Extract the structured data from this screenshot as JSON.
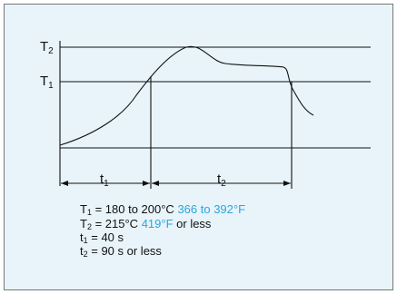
{
  "diagram": {
    "labels": {
      "t2_level": "T",
      "t2_level_sub": "2",
      "t1_level": "T",
      "t1_level_sub": "1",
      "t1_span": "t",
      "t1_span_sub": "1",
      "t2_span": "t",
      "t2_span_sub": "2"
    },
    "legend": {
      "line1": {
        "sym": "T",
        "sub": "1",
        "black": " = 180 to 200°C ",
        "blue": "366 to 392°F"
      },
      "line2": {
        "sym": "T",
        "sub": "2",
        "black": " = 215°C ",
        "blue": "419°F",
        "tail": " or less"
      },
      "line3": {
        "sym": "t",
        "sub": "1",
        "black": " = 40 s"
      },
      "line4": {
        "sym": "t",
        "sub": "2",
        "black": " = 90 s or less"
      }
    },
    "colors": {
      "background": "#e8f4fa",
      "line": "#111111",
      "accent": "#2aa6dc"
    }
  }
}
